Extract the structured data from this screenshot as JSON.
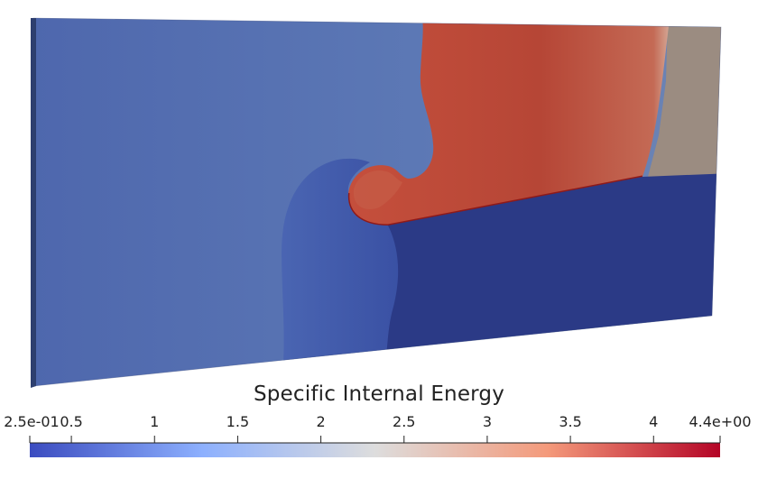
{
  "colorbar": {
    "title": "Specific Internal Energy",
    "min_label": "2.5e-01",
    "max_label": "4.4e+00",
    "min_value": 0.25,
    "max_value": 4.4,
    "ticks": [
      {
        "value": 0.25,
        "label": "2.5e-01"
      },
      {
        "value": 0.5,
        "label": "0.5"
      },
      {
        "value": 1,
        "label": "1"
      },
      {
        "value": 1.5,
        "label": "1.5"
      },
      {
        "value": 2,
        "label": "2"
      },
      {
        "value": 2.5,
        "label": "2.5"
      },
      {
        "value": 3,
        "label": "3"
      },
      {
        "value": 3.5,
        "label": "3.5"
      },
      {
        "value": 4,
        "label": "4"
      },
      {
        "value": 4.4,
        "label": "4.4e+00"
      }
    ],
    "colormap": [
      "#3b4cc0",
      "#8db0fe",
      "#dddddd",
      "#f49a7b",
      "#b40426"
    ]
  },
  "colors": {
    "left_region": "#5a76b6",
    "upper_right_region": "#b84a3a",
    "far_right_region": "#9a8b80",
    "lower_right_region": "#2c3a86",
    "jet_region": "#3d57a8"
  }
}
